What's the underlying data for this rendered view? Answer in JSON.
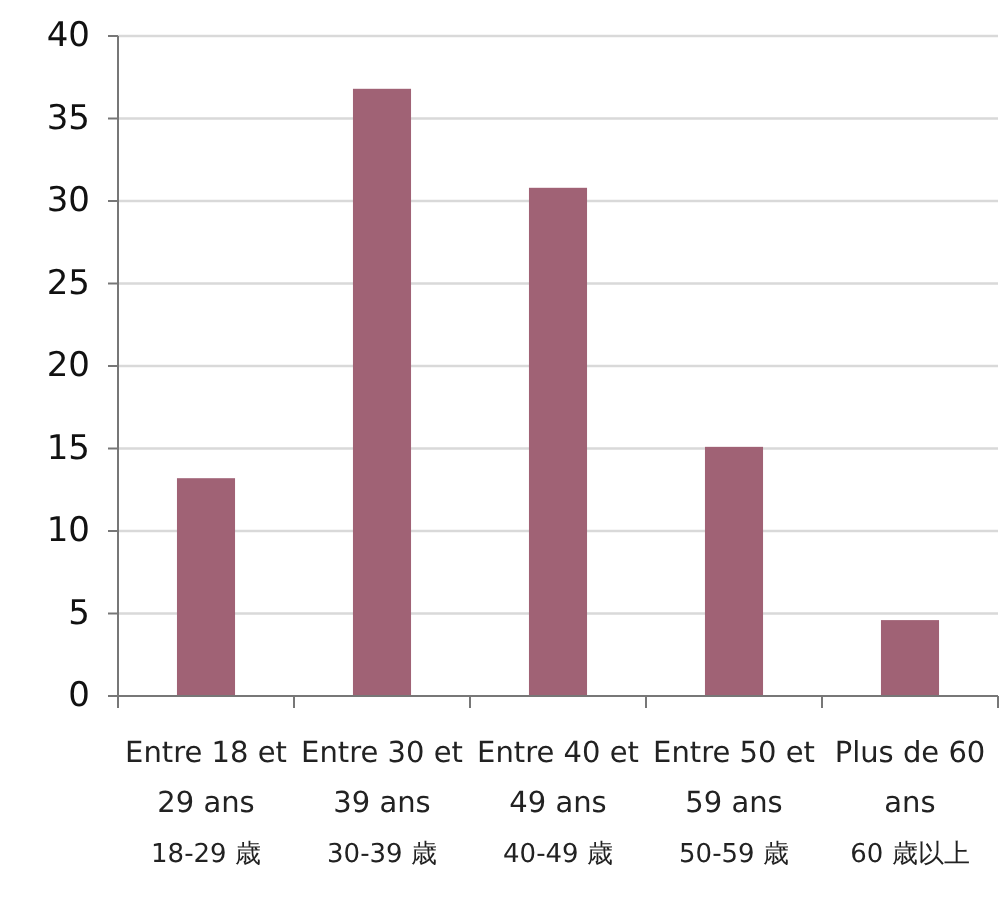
{
  "chart_data": {
    "type": "bar",
    "categories": [
      "Entre 18 et 29 ans\n18-29 歳",
      "Entre 30 et 39 ans\n30-39 歳",
      "Entre 40 et 49 ans\n40-49 歳",
      "Entre 50 et 59 ans\n50-59 歳",
      "Plus de 60 ans\n60 歳以上"
    ],
    "values": [
      13.2,
      36.8,
      30.8,
      15.1,
      4.6
    ],
    "color": "#a06275",
    "ylim": [
      0,
      40
    ],
    "yticks": [
      0,
      5,
      10,
      15,
      20,
      25,
      30,
      35,
      40
    ],
    "grid": "y"
  }
}
